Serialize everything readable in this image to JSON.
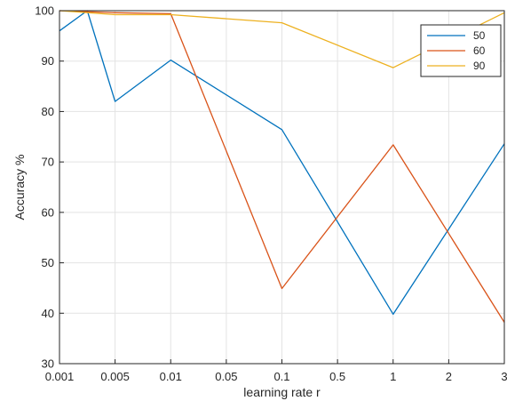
{
  "chart_data": {
    "type": "line",
    "title": "",
    "xlabel": "learning rate r",
    "ylabel": "Accuracy %",
    "categories": [
      "0.001",
      "0.005",
      "0.01",
      "0.05",
      "0.1",
      "0.5",
      "1",
      "2",
      "3"
    ],
    "ylim": [
      30,
      100
    ],
    "yticks": [
      "30",
      "40",
      "50",
      "60",
      "70",
      "80",
      "90",
      "100"
    ],
    "grid": true,
    "legend_position": "top-right",
    "series": [
      {
        "name": "50",
        "color": "#0072BD",
        "points": [
          [
            0,
            96.0
          ],
          [
            0.5,
            100
          ],
          [
            1,
            82.0
          ],
          [
            2,
            90.2
          ],
          [
            4,
            76.4
          ],
          [
            6,
            39.8
          ],
          [
            8,
            73.6
          ]
        ]
      },
      {
        "name": "60",
        "color": "#D95319",
        "points": [
          [
            0,
            100
          ],
          [
            1,
            99.6
          ],
          [
            2,
            99.4
          ],
          [
            4,
            44.9
          ],
          [
            6,
            73.4
          ],
          [
            8,
            38.2
          ]
        ]
      },
      {
        "name": "90",
        "color": "#EDB120",
        "points": [
          [
            0,
            100
          ],
          [
            1,
            99.2
          ],
          [
            2,
            99.2
          ],
          [
            4,
            97.6
          ],
          [
            6,
            88.7
          ],
          [
            8,
            99.6
          ]
        ]
      }
    ]
  }
}
